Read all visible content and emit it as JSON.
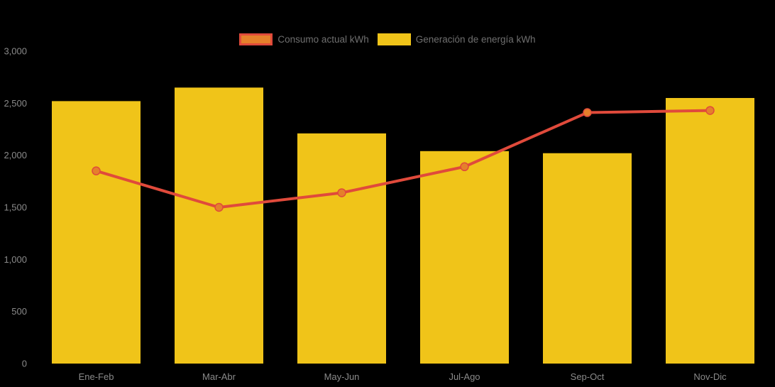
{
  "chart_data": {
    "type": "combo",
    "categories": [
      "Ene-Feb",
      "Mar-Abr",
      "May-Jun",
      "Jul-Ago",
      "Sep-Oct",
      "Nov-Dic"
    ],
    "series": [
      {
        "name": "Consumo actual kWh",
        "type": "line",
        "values": [
          1850,
          1500,
          1640,
          1890,
          2410,
          2430
        ],
        "color": "#E04A3B",
        "marker_color": "#E5802B"
      },
      {
        "name": "Generación de energía kWh",
        "type": "bar",
        "values": [
          2520,
          2650,
          2210,
          2040,
          2020,
          2550
        ],
        "color": "#F0C419"
      }
    ],
    "title": "",
    "xlabel": "",
    "ylabel": "",
    "ylim": [
      0,
      3000
    ],
    "ytick_values": [
      0,
      500,
      1000,
      1500,
      2000,
      2500,
      3000
    ],
    "ytick_labels": [
      "0",
      "500",
      "1,000",
      "1,500",
      "2,000",
      "2,500",
      "3,000"
    ],
    "legend_position": "top-center",
    "grid": false
  },
  "colors": {
    "background": "#000000",
    "axis_text": "#8A8A8A",
    "legend_text": "#6F6F6F"
  }
}
